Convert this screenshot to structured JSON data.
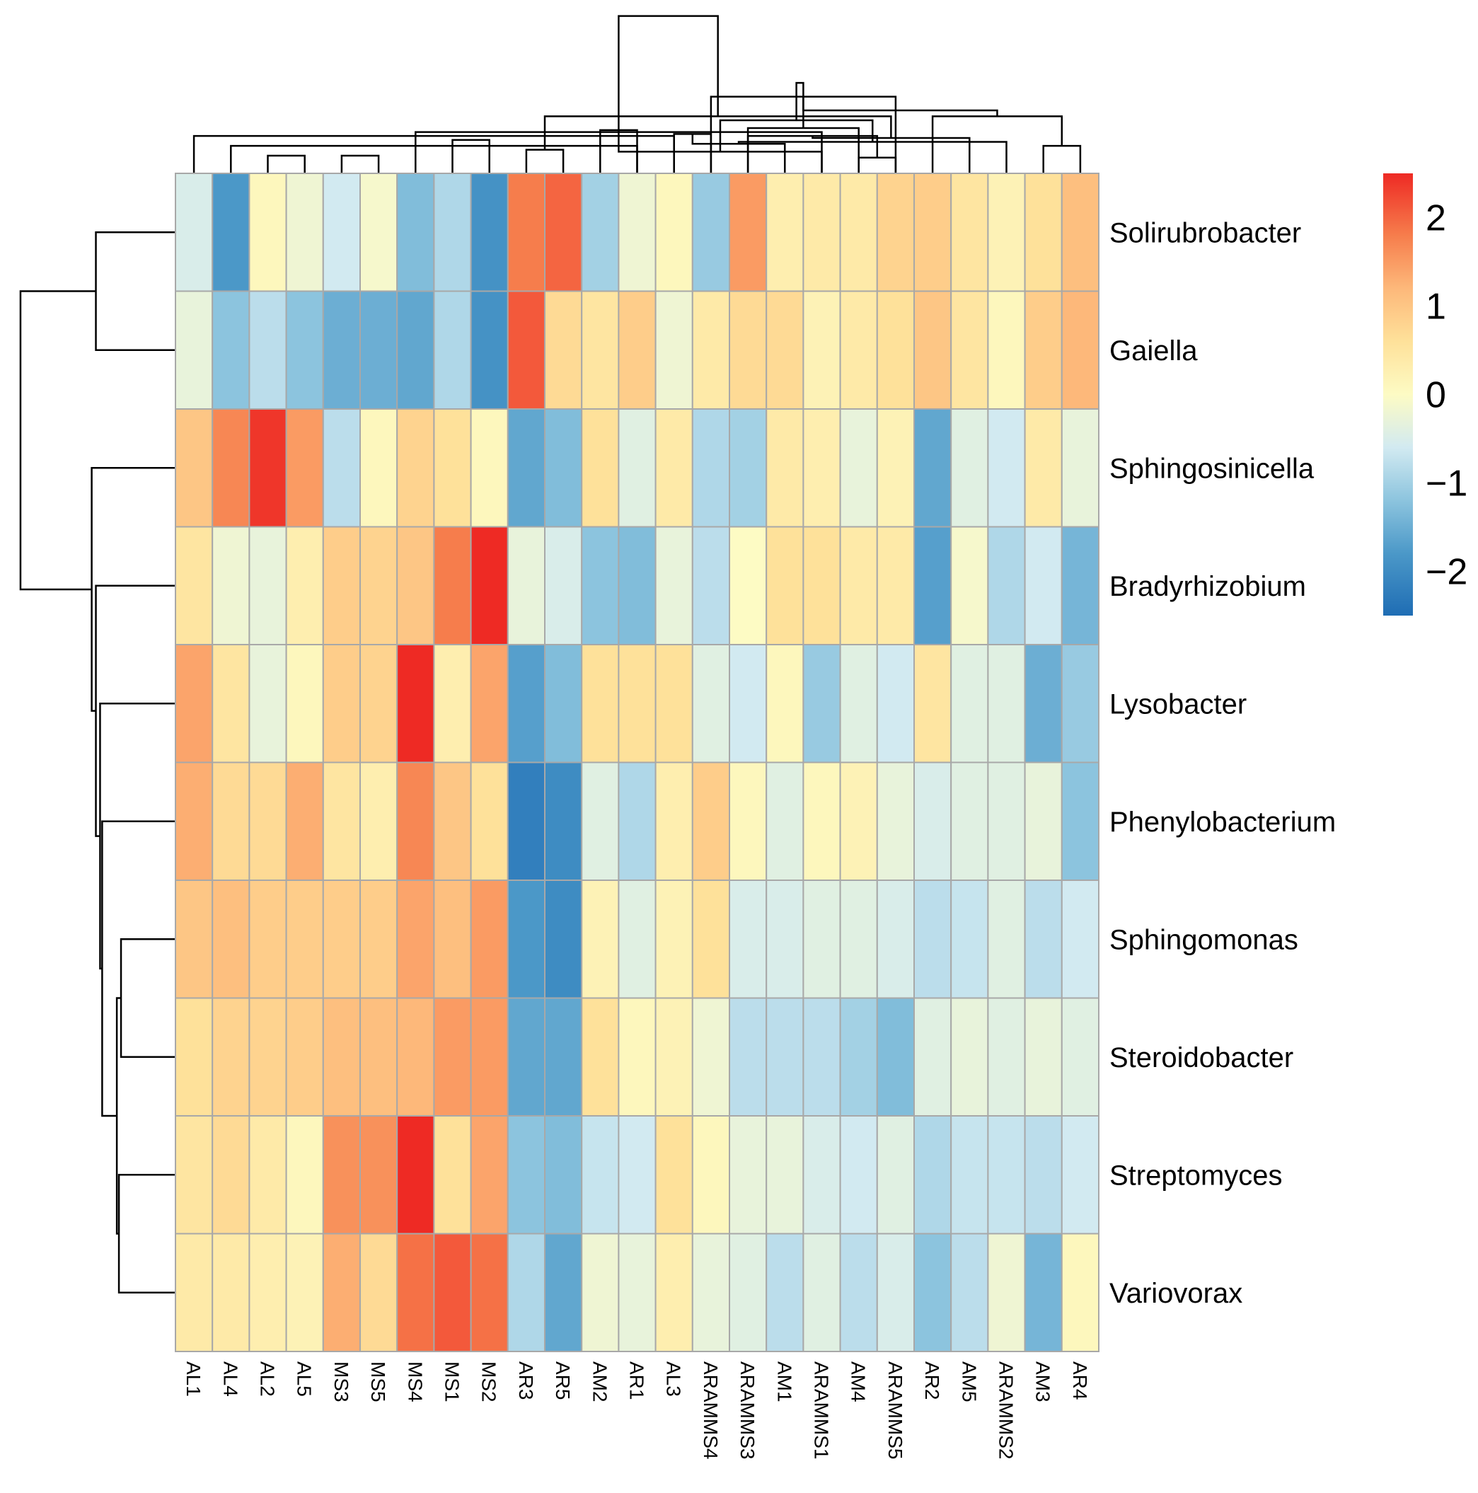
{
  "chart_data": {
    "type": "heatmap",
    "title": "",
    "rows": [
      "Solirubrobacter",
      "Gaiella",
      "Sphingosinicella",
      "Bradyrhizobium",
      "Lysobacter",
      "Phenylobacterium",
      "Sphingomonas",
      "Steroidobacter",
      "Streptomyces",
      "Variovorax"
    ],
    "columns": [
      "AL1",
      "AL4",
      "AL2",
      "AL5",
      "MS3",
      "MS5",
      "MS4",
      "MS1",
      "MS2",
      "AR3",
      "AR5",
      "AM2",
      "AR1",
      "AL3",
      "ARAMMS4",
      "ARAMMS3",
      "AM1",
      "ARAMMS1",
      "AM4",
      "ARAMMS5",
      "AR2",
      "AM5",
      "ARAMMS2",
      "AM3",
      "AR4"
    ],
    "values": [
      [
        -0.5,
        -1.8,
        0.1,
        -0.2,
        -0.6,
        -0.1,
        -1.3,
        -0.9,
        -1.9,
        1.8,
        2.0,
        -1.0,
        -0.2,
        0.1,
        -1.1,
        1.5,
        0.3,
        0.4,
        0.4,
        0.8,
        0.9,
        0.5,
        0.2,
        0.6,
        1.1
      ],
      [
        -0.3,
        -1.2,
        -0.8,
        -1.2,
        -1.5,
        -1.5,
        -1.6,
        -0.9,
        -1.9,
        2.1,
        0.7,
        0.5,
        0.9,
        -0.2,
        0.4,
        0.7,
        0.7,
        0.2,
        0.4,
        0.6,
        1.0,
        0.5,
        0.1,
        0.9,
        1.2
      ],
      [
        1.0,
        1.7,
        2.4,
        1.5,
        -0.8,
        0.1,
        0.8,
        0.6,
        0.1,
        -1.6,
        -1.3,
        0.6,
        -0.4,
        0.4,
        -0.9,
        -1.0,
        0.4,
        0.3,
        -0.3,
        0.2,
        -1.6,
        -0.4,
        -0.6,
        0.4,
        -0.3
      ],
      [
        0.5,
        -0.2,
        -0.3,
        0.3,
        0.9,
        0.8,
        1.0,
        1.8,
        2.5,
        -0.3,
        -0.5,
        -1.2,
        -1.3,
        -0.3,
        -0.8,
        0.0,
        0.6,
        0.6,
        0.4,
        0.4,
        -1.7,
        -0.1,
        -0.9,
        -0.6,
        -1.4
      ],
      [
        1.4,
        0.5,
        -0.3,
        0.1,
        0.9,
        0.8,
        2.5,
        0.3,
        1.4,
        -1.7,
        -1.3,
        0.6,
        0.6,
        0.6,
        -0.4,
        -0.6,
        0.1,
        -1.1,
        -0.4,
        -0.6,
        0.5,
        -0.4,
        -0.4,
        -1.5,
        -1.1
      ],
      [
        1.3,
        0.7,
        0.7,
        1.3,
        0.5,
        0.3,
        1.7,
        1.0,
        0.6,
        -2.2,
        -2.0,
        -0.4,
        -0.9,
        0.3,
        0.9,
        0.1,
        -0.4,
        0.1,
        0.2,
        -0.3,
        -0.5,
        -0.4,
        -0.4,
        -0.3,
        -1.2
      ],
      [
        1.0,
        1.1,
        0.9,
        0.9,
        0.9,
        0.9,
        1.4,
        1.1,
        1.5,
        -1.8,
        -2.0,
        0.2,
        -0.4,
        0.2,
        0.6,
        -0.5,
        -0.5,
        -0.4,
        -0.4,
        -0.5,
        -0.8,
        -0.7,
        -0.4,
        -0.8,
        -0.6
      ],
      [
        0.6,
        0.8,
        0.8,
        0.9,
        1.1,
        1.1,
        1.2,
        1.5,
        1.5,
        -1.6,
        -1.6,
        0.6,
        0.1,
        0.2,
        -0.2,
        -0.8,
        -0.8,
        -0.8,
        -1.0,
        -1.3,
        -0.4,
        -0.3,
        -0.4,
        -0.3,
        -0.4
      ],
      [
        0.5,
        0.7,
        0.4,
        0.1,
        1.6,
        1.6,
        2.5,
        0.6,
        1.4,
        -1.2,
        -1.3,
        -0.7,
        -0.6,
        0.6,
        0.1,
        -0.3,
        -0.3,
        -0.5,
        -0.6,
        -0.4,
        -0.9,
        -0.7,
        -0.7,
        -0.8,
        -0.6
      ],
      [
        0.4,
        0.4,
        0.3,
        0.2,
        1.3,
        0.7,
        1.9,
        2.1,
        1.9,
        -0.9,
        -1.6,
        -0.2,
        -0.3,
        0.3,
        -0.3,
        -0.4,
        -0.8,
        -0.4,
        -0.8,
        -0.5,
        -1.2,
        -0.8,
        -0.2,
        -1.4,
        0.1
      ]
    ],
    "color_scale": {
      "min": -2.5,
      "max": 2.5,
      "stops": [
        {
          "value": -2.5,
          "color": "#1f6db4"
        },
        {
          "value": -1.8,
          "color": "#4b98c8"
        },
        {
          "value": -1.2,
          "color": "#8cc4de"
        },
        {
          "value": -0.6,
          "color": "#d2eaf1"
        },
        {
          "value": 0.0,
          "color": "#fdfbc4"
        },
        {
          "value": 0.6,
          "color": "#fee19a"
        },
        {
          "value": 1.2,
          "color": "#fdb87a"
        },
        {
          "value": 1.8,
          "color": "#f67d4c"
        },
        {
          "value": 2.5,
          "color": "#ee2a24"
        }
      ]
    },
    "legend_ticks": [
      {
        "value": 2,
        "label": "2"
      },
      {
        "value": 1,
        "label": "1"
      },
      {
        "value": 0,
        "label": "0"
      },
      {
        "value": -1,
        "label": "−1"
      },
      {
        "value": -2,
        "label": "−2"
      }
    ],
    "column_dendrogram": {
      "merges": [
        [
          2,
          3,
          0.9
        ],
        [
          1,
          12,
          1.4
        ],
        [
          0,
          13,
          1.9
        ],
        [
          4,
          5,
          0.9
        ],
        [
          7,
          8,
          1.7
        ],
        [
          6,
          17,
          2.1
        ],
        [
          15,
          18,
          2.3
        ],
        [
          14,
          19,
          3.9
        ],
        [
          9,
          10,
          1.2
        ],
        [
          11,
          12,
          2.2
        ],
        [
          13,
          14,
          2.0
        ],
        [
          18,
          19,
          0.8
        ],
        [
          17,
          34,
          1.1
        ],
        [
          16,
          35,
          1.5
        ],
        [
          15,
          36,
          1.9
        ],
        [
          23,
          24,
          1.4
        ],
        [
          22,
          38,
          1.6
        ],
        [
          21,
          39,
          1.8
        ],
        [
          20,
          40,
          2.9
        ],
        [
          37,
          41,
          2.7
        ],
        [
          33,
          42,
          2.9
        ],
        [
          32,
          43,
          3.2
        ],
        [
          31,
          44,
          4.6
        ],
        [
          30,
          45,
          8.0
        ]
      ]
    },
    "row_dendrogram": {
      "merges": [
        [
          0,
          1,
          3.8
        ],
        [
          6,
          7,
          2.6
        ],
        [
          8,
          9,
          2.7
        ],
        [
          11,
          12,
          2.8
        ],
        [
          5,
          13,
          3.5
        ],
        [
          4,
          14,
          3.6
        ],
        [
          3,
          15,
          3.8
        ],
        [
          2,
          16,
          4.0
        ],
        [
          10,
          17,
          7.4
        ]
      ]
    }
  }
}
